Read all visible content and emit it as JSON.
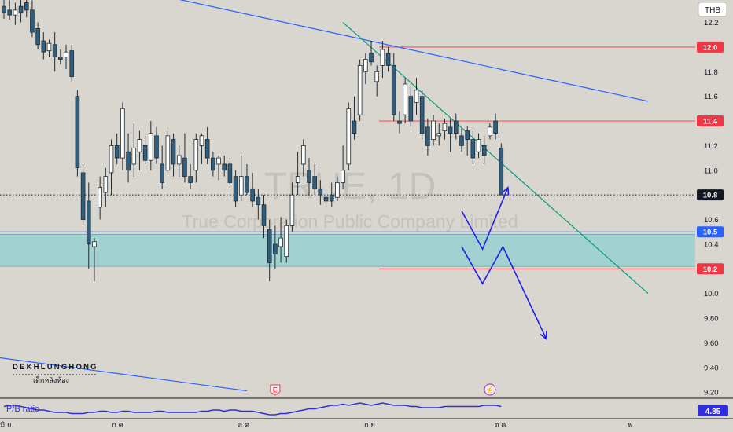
{
  "chart_data": {
    "type": "candlestick",
    "currency": "THB",
    "timeframe": "1D",
    "watermark": {
      "symbol": "TRUE, 1D",
      "company": "True Corporation Public Company Limited"
    },
    "ylim": [
      9.15,
      12.35
    ],
    "y_ticks": [
      12.2,
      11.8,
      11.6,
      11.2,
      11.0,
      10.6,
      10.4,
      10.0,
      9.8,
      9.6,
      9.4,
      9.2
    ],
    "y_tick_labels": [
      "12.2",
      "11.8",
      "11.6",
      "11.2",
      "11.0",
      "10.6",
      "10.4",
      "10.0",
      "9.80",
      "9.60",
      "9.40",
      "9.20"
    ],
    "x_ticks": [
      {
        "label": "มิ.ย.",
        "bar": 0.5
      },
      {
        "label": "ก.ค.",
        "bar": 20.3
      },
      {
        "label": "ส.ค.",
        "bar": 42.6
      },
      {
        "label": "ก.ย.",
        "bar": 64.9
      },
      {
        "label": "ต.ค.",
        "bar": 88
      },
      {
        "label": "พ.",
        "bar": 111
      }
    ],
    "levels": [
      {
        "value": 12.0,
        "label": "12.0",
        "color": "#f23645",
        "kind": "resistance"
      },
      {
        "value": 11.4,
        "label": "11.4",
        "color": "#f23645",
        "kind": "resistance"
      },
      {
        "value": 10.8,
        "label": "10.8",
        "color": "#131722",
        "kind": "last-price"
      },
      {
        "value": 10.5,
        "label": "10.5",
        "color": "#2962ff",
        "kind": "support"
      },
      {
        "value": 10.2,
        "label": "10.2",
        "color": "#f23645",
        "kind": "support"
      }
    ],
    "zone": {
      "from": 10.22,
      "to": 10.48,
      "color": "#8fd0d0"
    },
    "trendlines": [
      {
        "name": "upper-blue-line",
        "color": "#2962ff",
        "points": [
          [
            4.5,
            12.65
          ],
          [
            114,
            11.56
          ]
        ]
      },
      {
        "name": "green-down-line",
        "color": "#089981",
        "points": [
          [
            60,
            12.2
          ],
          [
            114,
            10.0
          ]
        ]
      },
      {
        "name": "lower-blue-line",
        "color": "#2962ff",
        "points": [
          [
            -1,
            9.48
          ],
          [
            43,
            9.21
          ]
        ]
      }
    ],
    "projections": [
      {
        "name": "projection-path-1",
        "color": "#1e1ee8",
        "points": [
          [
            81,
            10.67
          ],
          [
            84.7,
            10.36
          ],
          [
            89.2,
            10.86
          ]
        ],
        "arrow": true
      },
      {
        "name": "projection-path-2",
        "color": "#1e1ee8",
        "points": [
          [
            81,
            10.38
          ],
          [
            84.7,
            10.08
          ],
          [
            88.3,
            10.38
          ],
          [
            96,
            9.63
          ]
        ],
        "arrow": true
      }
    ],
    "candles": [
      [
        0,
        12.33,
        12.4,
        12.23,
        12.28
      ],
      [
        1,
        12.3,
        12.38,
        12.22,
        12.26
      ],
      [
        2,
        12.26,
        12.36,
        12.18,
        12.3
      ],
      [
        3,
        12.33,
        12.4,
        12.2,
        12.28
      ],
      [
        4,
        12.36,
        12.42,
        12.24,
        12.3
      ],
      [
        5,
        12.3,
        12.38,
        12.08,
        12.12
      ],
      [
        6,
        12.15,
        12.2,
        11.98,
        12.02
      ],
      [
        7,
        12.05,
        12.12,
        11.9,
        11.96
      ],
      [
        8,
        11.97,
        12.06,
        11.92,
        12.03
      ],
      [
        9,
        12.02,
        12.12,
        11.8,
        11.92
      ],
      [
        10,
        11.92,
        11.98,
        11.86,
        11.9
      ],
      [
        11,
        11.92,
        12.02,
        11.82,
        11.96
      ],
      [
        12,
        11.97,
        12.02,
        11.72,
        11.76
      ],
      [
        13,
        11.6,
        11.65,
        10.95,
        11.02
      ],
      [
        14,
        10.98,
        11.05,
        10.55,
        10.6
      ],
      [
        15,
        10.75,
        10.9,
        10.2,
        10.4
      ],
      [
        16,
        10.38,
        10.45,
        10.1,
        10.42
      ],
      [
        17,
        10.7,
        10.95,
        10.6,
        10.86
      ],
      [
        18,
        10.82,
        11.02,
        10.7,
        10.95
      ],
      [
        19,
        10.98,
        11.25,
        10.8,
        11.2
      ],
      [
        20,
        11.2,
        11.3,
        11.05,
        11.1
      ],
      [
        21,
        11.1,
        11.55,
        11.0,
        11.5
      ],
      [
        22,
        11.15,
        11.3,
        10.9,
        11.0
      ],
      [
        23,
        11.05,
        11.38,
        10.95,
        11.18
      ],
      [
        24,
        11.15,
        11.32,
        11.0,
        11.25
      ],
      [
        25,
        11.2,
        11.28,
        11.05,
        11.08
      ],
      [
        26,
        11.08,
        11.4,
        11.0,
        11.3
      ],
      [
        27,
        11.28,
        11.35,
        11.05,
        11.1
      ],
      [
        28,
        11.05,
        11.2,
        10.85,
        10.9
      ],
      [
        29,
        11.0,
        11.32,
        10.98,
        11.28
      ],
      [
        30,
        11.25,
        11.3,
        10.95,
        11.05
      ],
      [
        31,
        11.05,
        11.2,
        10.95,
        11.12
      ],
      [
        32,
        11.1,
        11.3,
        10.9,
        10.95
      ],
      [
        33,
        10.95,
        11.05,
        10.85,
        10.9
      ],
      [
        34,
        11.0,
        11.3,
        10.9,
        11.25
      ],
      [
        35,
        11.2,
        11.3,
        11.05,
        11.28
      ],
      [
        36,
        11.25,
        11.35,
        11.05,
        11.1
      ],
      [
        37,
        11.1,
        11.15,
        10.95,
        11.0
      ],
      [
        38,
        11.05,
        11.12,
        10.92,
        11.1
      ],
      [
        39,
        11.05,
        11.12,
        10.95,
        11.0
      ],
      [
        40,
        11.05,
        11.1,
        10.88,
        10.9
      ],
      [
        41,
        10.95,
        11.0,
        10.7,
        10.75
      ],
      [
        42,
        10.8,
        11.12,
        10.75,
        10.95
      ],
      [
        43,
        10.95,
        11.05,
        10.8,
        10.82
      ],
      [
        44,
        10.85,
        10.98,
        10.7,
        10.75
      ],
      [
        45,
        10.78,
        10.85,
        10.6,
        10.72
      ],
      [
        46,
        10.72,
        10.8,
        10.45,
        10.55
      ],
      [
        47,
        10.52,
        10.6,
        10.1,
        10.25
      ],
      [
        48,
        10.4,
        10.55,
        10.2,
        10.32
      ],
      [
        49,
        10.38,
        10.62,
        10.25,
        10.45
      ],
      [
        50,
        10.3,
        10.6,
        10.25,
        10.55
      ],
      [
        51,
        10.55,
        10.9,
        10.5,
        10.8
      ],
      [
        52,
        10.9,
        11.15,
        10.8,
        10.95
      ],
      [
        53,
        11.05,
        11.25,
        10.95,
        11.2
      ],
      [
        54,
        11.0,
        11.1,
        10.8,
        10.9
      ],
      [
        55,
        10.95,
        11.05,
        10.8,
        10.85
      ],
      [
        56,
        10.85,
        10.92,
        10.72,
        10.8
      ],
      [
        57,
        10.78,
        10.85,
        10.7,
        10.75
      ],
      [
        58,
        10.8,
        10.9,
        10.7,
        10.75
      ],
      [
        59,
        10.78,
        10.95,
        10.75,
        10.9
      ],
      [
        60,
        10.9,
        11.2,
        10.85,
        11.0
      ],
      [
        61,
        11.05,
        11.55,
        11.0,
        11.5
      ],
      [
        62,
        11.4,
        11.6,
        11.25,
        11.3
      ],
      [
        63,
        11.45,
        11.9,
        11.4,
        11.85
      ],
      [
        64,
        11.8,
        11.95,
        11.7,
        11.9
      ],
      [
        65,
        11.95,
        12.05,
        11.85,
        11.88
      ],
      [
        66,
        11.72,
        11.85,
        11.6,
        11.8
      ],
      [
        67,
        11.85,
        12.05,
        11.75,
        11.98
      ],
      [
        68,
        11.95,
        12.0,
        11.8,
        11.85
      ],
      [
        69,
        11.85,
        11.95,
        11.4,
        11.45
      ],
      [
        70,
        11.4,
        11.48,
        11.3,
        11.38
      ],
      [
        71,
        11.45,
        11.75,
        11.38,
        11.7
      ],
      [
        72,
        11.6,
        11.68,
        11.35,
        11.4
      ],
      [
        73,
        11.55,
        11.75,
        11.45,
        11.65
      ],
      [
        74,
        11.6,
        11.65,
        11.25,
        11.3
      ],
      [
        75,
        11.35,
        11.42,
        11.12,
        11.2
      ],
      [
        76,
        11.25,
        11.45,
        11.2,
        11.4
      ],
      [
        77,
        11.28,
        11.38,
        11.2,
        11.3
      ],
      [
        78,
        11.32,
        11.42,
        11.25,
        11.38
      ],
      [
        79,
        11.35,
        11.42,
        11.15,
        11.3
      ],
      [
        80,
        11.4,
        11.46,
        11.25,
        11.3
      ],
      [
        81,
        11.28,
        11.34,
        11.15,
        11.2
      ],
      [
        82,
        11.32,
        11.36,
        11.12,
        11.25
      ],
      [
        83,
        11.25,
        11.32,
        11.05,
        11.1
      ],
      [
        84,
        11.15,
        11.3,
        11.1,
        11.25
      ],
      [
        85,
        11.2,
        11.28,
        11.05,
        11.12
      ],
      [
        86,
        11.28,
        11.38,
        11.25,
        11.35
      ],
      [
        87,
        11.4,
        11.46,
        11.25,
        11.3
      ],
      [
        88,
        11.18,
        11.22,
        10.8,
        10.8
      ]
    ],
    "indicator": {
      "name": "P/B ratio",
      "value": "4.85",
      "color": "#2f2fe0",
      "ylim": [
        4.76,
        4.9
      ],
      "values": [
        4.85,
        4.86,
        4.86,
        4.85,
        4.84,
        4.83,
        4.82,
        4.82,
        4.81,
        4.8,
        4.8,
        4.8,
        4.79,
        4.79,
        4.79,
        4.8,
        4.8,
        4.81,
        4.81,
        4.8,
        4.8,
        4.81,
        4.81,
        4.8,
        4.8,
        4.8,
        4.8,
        4.81,
        4.81,
        4.8,
        4.8,
        4.8,
        4.8,
        4.8,
        4.8,
        4.81,
        4.81,
        4.82,
        4.82,
        4.81,
        4.82,
        4.82,
        4.81,
        4.81,
        4.81,
        4.8,
        4.79,
        4.78,
        4.78,
        4.79,
        4.79,
        4.8,
        4.81,
        4.82,
        4.83,
        4.83,
        4.84,
        4.85,
        4.86,
        4.86,
        4.87,
        4.86,
        4.87,
        4.88,
        4.87,
        4.86,
        4.87,
        4.88,
        4.87,
        4.86,
        4.86,
        4.86,
        4.85,
        4.85,
        4.84,
        4.84,
        4.84,
        4.84,
        4.85,
        4.85,
        4.85,
        4.85,
        4.85,
        4.85,
        4.85,
        4.86,
        4.86,
        4.86,
        4.85
      ]
    },
    "events": [
      {
        "name": "earnings-icon",
        "glyph": "E",
        "bar": 48,
        "color": "#f23645"
      },
      {
        "name": "dividend-icon",
        "glyph": "⚡",
        "bar": 86,
        "color": "#9c27b0"
      }
    ]
  },
  "branding": {
    "line1": "DEKHLUNGHONG",
    "line2": "เด็กหลังห้อง"
  },
  "colors": {
    "bull": "#ffffff",
    "bear": "#2f5e7e",
    "outline": "#1f2b33",
    "background": "#d9d6cf"
  }
}
